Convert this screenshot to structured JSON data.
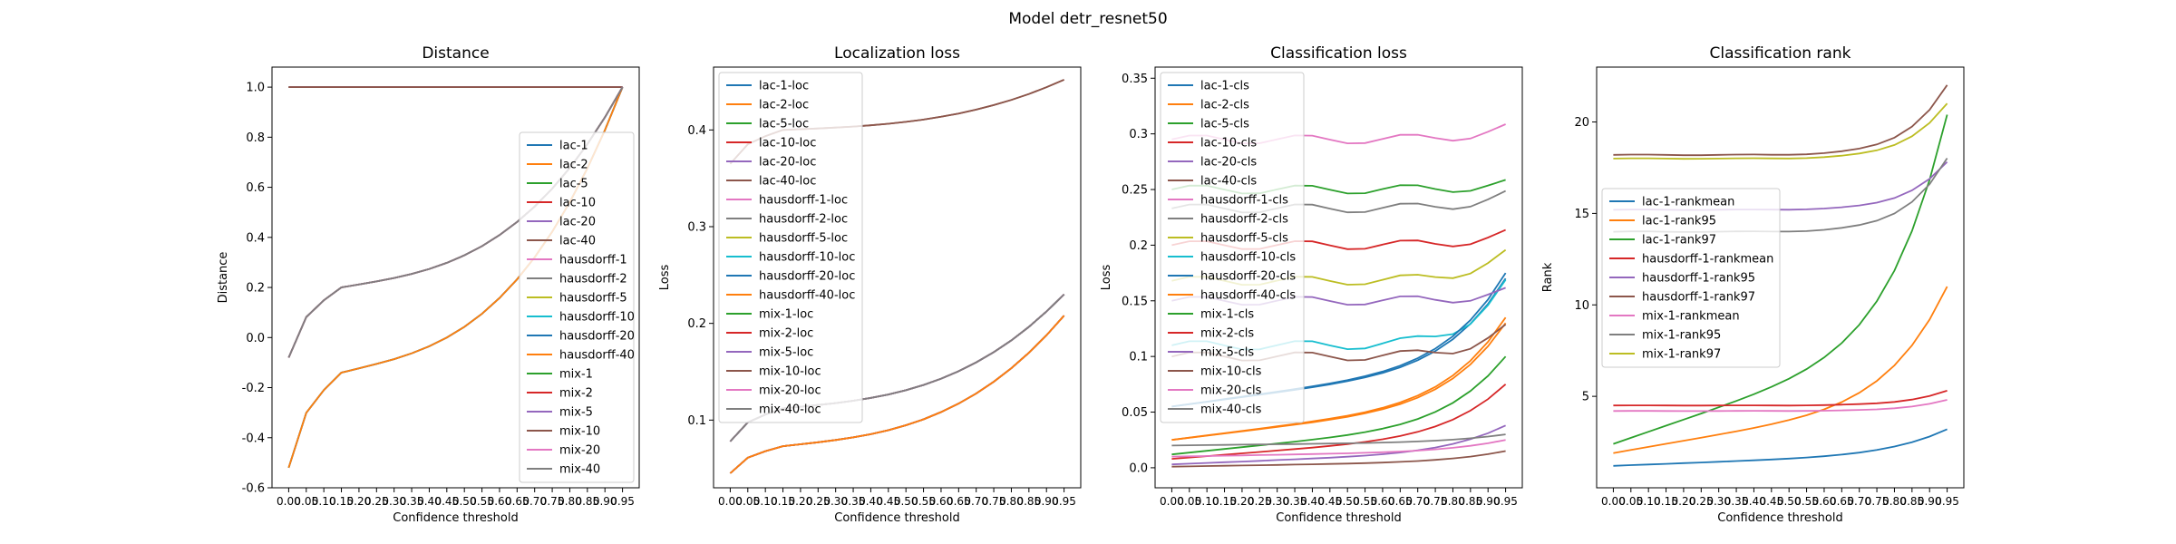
{
  "figure_title": "Model detr_resnet50",
  "chart_data": [
    {
      "type": "line",
      "title": "Distance",
      "xlabel": "Confidence threshold",
      "ylabel": "Distance",
      "ylim": [
        -0.6,
        1.08
      ],
      "yticks": [
        -0.6,
        -0.4,
        -0.2,
        0.0,
        0.2,
        0.4,
        0.6,
        0.8,
        1.0
      ],
      "grid": false,
      "legend_position": "lower-right",
      "series": [
        {
          "name": "lac-1",
          "color": "#1f77b4",
          "curve": "const",
          "y0": 1.0,
          "y1": 1.0
        },
        {
          "name": "lac-2",
          "color": "#ff7f0e",
          "curve": "const",
          "y0": 1.0,
          "y1": 1.0
        },
        {
          "name": "lac-5",
          "color": "#2ca02c",
          "curve": "const",
          "y0": 1.0,
          "y1": 1.0
        },
        {
          "name": "lac-10",
          "color": "#d62728",
          "curve": "const",
          "y0": 1.0,
          "y1": 1.0
        },
        {
          "name": "lac-20",
          "color": "#9467bd",
          "curve": "const",
          "y0": 1.0,
          "y1": 1.0
        },
        {
          "name": "lac-40",
          "color": "#8c564b",
          "curve": "const",
          "y0": 1.0,
          "y1": 1.0
        },
        {
          "name": "hausdorff-1",
          "color": "#e377c2",
          "curve": "log",
          "y0": -0.52,
          "yp": -0.14,
          "y1": 1.0
        },
        {
          "name": "hausdorff-2",
          "color": "#7f7f7f",
          "curve": "log",
          "y0": -0.08,
          "yp": 0.2,
          "y1": 1.0
        },
        {
          "name": "hausdorff-5",
          "color": "#bcbd22",
          "curve": "log",
          "y0": -0.52,
          "yp": -0.14,
          "y1": 1.0
        },
        {
          "name": "hausdorff-10",
          "color": "#17becf",
          "curve": "log",
          "y0": -0.52,
          "yp": -0.14,
          "y1": 1.0
        },
        {
          "name": "hausdorff-20",
          "color": "#1f77b4",
          "curve": "log",
          "y0": -0.52,
          "yp": -0.14,
          "y1": 1.0
        },
        {
          "name": "hausdorff-40",
          "color": "#ff7f0e",
          "curve": "log",
          "y0": -0.52,
          "yp": -0.14,
          "y1": 1.0
        },
        {
          "name": "mix-1",
          "color": "#2ca02c",
          "curve": "log",
          "y0": -0.08,
          "yp": 0.2,
          "y1": 1.0
        },
        {
          "name": "mix-2",
          "color": "#d62728",
          "curve": "log",
          "y0": -0.08,
          "yp": 0.2,
          "y1": 1.0
        },
        {
          "name": "mix-5",
          "color": "#9467bd",
          "curve": "log",
          "y0": -0.08,
          "yp": 0.2,
          "y1": 1.0
        },
        {
          "name": "mix-10",
          "color": "#8c564b",
          "curve": "log",
          "y0": -0.08,
          "yp": 0.2,
          "y1": 1.0
        },
        {
          "name": "mix-20",
          "color": "#e377c2",
          "curve": "log",
          "y0": -0.08,
          "yp": 0.2,
          "y1": 1.0
        },
        {
          "name": "mix-40",
          "color": "#7f7f7f",
          "curve": "log",
          "y0": -0.08,
          "yp": 0.2,
          "y1": 1.0
        }
      ]
    },
    {
      "type": "line",
      "title": "Localization loss",
      "xlabel": "Confidence threshold",
      "ylabel": "Loss",
      "ylim": [
        0.03,
        0.465
      ],
      "yticks": [
        0.1,
        0.2,
        0.3,
        0.4
      ],
      "grid": false,
      "legend_position": "upper-left",
      "series": [
        {
          "name": "lac-1-loc",
          "color": "#1f77b4",
          "curve": "log",
          "y0": 0.045,
          "yp": 0.073,
          "y1": 0.208
        },
        {
          "name": "lac-2-loc",
          "color": "#ff7f0e",
          "curve": "log",
          "y0": 0.045,
          "yp": 0.073,
          "y1": 0.208
        },
        {
          "name": "lac-5-loc",
          "color": "#2ca02c",
          "curve": "log",
          "y0": 0.045,
          "yp": 0.073,
          "y1": 0.208
        },
        {
          "name": "lac-10-loc",
          "color": "#d62728",
          "curve": "log",
          "y0": 0.045,
          "yp": 0.073,
          "y1": 0.208
        },
        {
          "name": "lac-20-loc",
          "color": "#9467bd",
          "curve": "log",
          "y0": 0.045,
          "yp": 0.073,
          "y1": 0.208
        },
        {
          "name": "lac-40-loc",
          "color": "#8c564b",
          "curve": "log",
          "y0": 0.365,
          "yp": 0.4,
          "y1": 0.452
        },
        {
          "name": "hausdorff-1-loc",
          "color": "#e377c2",
          "curve": "log",
          "y0": 0.078,
          "yp": 0.112,
          "y1": 0.23
        },
        {
          "name": "hausdorff-2-loc",
          "color": "#7f7f7f",
          "curve": "log",
          "y0": 0.078,
          "yp": 0.112,
          "y1": 0.23
        },
        {
          "name": "hausdorff-5-loc",
          "color": "#bcbd22",
          "curve": "log",
          "y0": 0.078,
          "yp": 0.112,
          "y1": 0.23
        },
        {
          "name": "hausdorff-10-loc",
          "color": "#17becf",
          "curve": "log",
          "y0": 0.078,
          "yp": 0.112,
          "y1": 0.23
        },
        {
          "name": "hausdorff-20-loc",
          "color": "#1f77b4",
          "curve": "log",
          "y0": 0.078,
          "yp": 0.112,
          "y1": 0.23
        },
        {
          "name": "hausdorff-40-loc",
          "color": "#ff7f0e",
          "curve": "log",
          "y0": 0.045,
          "yp": 0.073,
          "y1": 0.208
        },
        {
          "name": "mix-1-loc",
          "color": "#2ca02c",
          "curve": "log",
          "y0": 0.078,
          "yp": 0.112,
          "y1": 0.23
        },
        {
          "name": "mix-2-loc",
          "color": "#d62728",
          "curve": "log",
          "y0": 0.078,
          "yp": 0.112,
          "y1": 0.23
        },
        {
          "name": "mix-5-loc",
          "color": "#9467bd",
          "curve": "log",
          "y0": 0.078,
          "yp": 0.112,
          "y1": 0.23
        },
        {
          "name": "mix-10-loc",
          "color": "#8c564b",
          "curve": "log",
          "y0": 0.365,
          "yp": 0.4,
          "y1": 0.452
        },
        {
          "name": "mix-20-loc",
          "color": "#e377c2",
          "curve": "log",
          "y0": 0.078,
          "yp": 0.112,
          "y1": 0.23
        },
        {
          "name": "mix-40-loc",
          "color": "#7f7f7f",
          "curve": "log",
          "y0": 0.078,
          "yp": 0.112,
          "y1": 0.23
        }
      ]
    },
    {
      "type": "line",
      "title": "Classification loss",
      "xlabel": "Confidence threshold",
      "ylabel": "Loss",
      "ylim": [
        -0.018,
        0.36
      ],
      "yticks": [
        0.0,
        0.05,
        0.1,
        0.15,
        0.2,
        0.25,
        0.3,
        0.35
      ],
      "grid": false,
      "legend_position": "upper-left",
      "series": [
        {
          "name": "lac-1-cls",
          "color": "#1f77b4",
          "curve": "exp",
          "y0": 0.055,
          "y1": 0.17
        },
        {
          "name": "lac-2-cls",
          "color": "#ff7f0e",
          "curve": "exp",
          "y0": 0.025,
          "y1": 0.135
        },
        {
          "name": "lac-5-cls",
          "color": "#2ca02c",
          "curve": "exp",
          "y0": 0.012,
          "y1": 0.1
        },
        {
          "name": "lac-10-cls",
          "color": "#d62728",
          "curve": "exp",
          "y0": 0.008,
          "y1": 0.075
        },
        {
          "name": "lac-20-cls",
          "color": "#9467bd",
          "curve": "exp",
          "y0": 0.003,
          "y1": 0.038
        },
        {
          "name": "lac-40-cls",
          "color": "#8c564b",
          "curve": "exp",
          "y0": 0.001,
          "y1": 0.015
        },
        {
          "name": "hausdorff-1-cls",
          "color": "#e377c2",
          "curve": "flat",
          "y0": 0.295,
          "y1": 0.305
        },
        {
          "name": "hausdorff-2-cls",
          "color": "#7f7f7f",
          "curve": "flat",
          "y0": 0.233,
          "y1": 0.245
        },
        {
          "name": "hausdorff-5-cls",
          "color": "#bcbd22",
          "curve": "flat",
          "y0": 0.168,
          "y1": 0.192
        },
        {
          "name": "hausdorff-10-cls",
          "color": "#17becf",
          "curve": "flat",
          "y0": 0.11,
          "y1": 0.165
        },
        {
          "name": "hausdorff-20-cls",
          "color": "#1f77b4",
          "curve": "exp",
          "y0": 0.055,
          "y1": 0.175
        },
        {
          "name": "hausdorff-40-cls",
          "color": "#ff7f0e",
          "curve": "exp",
          "y0": 0.025,
          "y1": 0.13
        },
        {
          "name": "mix-1-cls",
          "color": "#2ca02c",
          "curve": "flat",
          "y0": 0.25,
          "y1": 0.255
        },
        {
          "name": "mix-2-cls",
          "color": "#d62728",
          "curve": "flat",
          "y0": 0.2,
          "y1": 0.21
        },
        {
          "name": "mix-5-cls",
          "color": "#9467bd",
          "curve": "flat",
          "y0": 0.15,
          "y1": 0.158
        },
        {
          "name": "mix-10-cls",
          "color": "#8c564b",
          "curve": "flat",
          "y0": 0.1,
          "y1": 0.125
        },
        {
          "name": "mix-20-cls",
          "color": "#e377c2",
          "curve": "exp",
          "y0": 0.01,
          "y1": 0.025
        },
        {
          "name": "mix-40-cls",
          "color": "#7f7f7f",
          "curve": "exp",
          "y0": 0.02,
          "y1": 0.03
        }
      ]
    },
    {
      "type": "line",
      "title": "Classification rank",
      "xlabel": "Confidence threshold",
      "ylabel": "Rank",
      "ylim": [
        0.0,
        23.0
      ],
      "yticks": [
        5,
        10,
        15,
        20
      ],
      "grid": false,
      "legend_position": "center-left",
      "series": [
        {
          "name": "lac-1-rankmean",
          "color": "#1f77b4",
          "curve": "exp",
          "y0": 1.2,
          "y1": 3.2
        },
        {
          "name": "lac-1-rank95",
          "color": "#ff7f0e",
          "curve": "exp",
          "y0": 1.9,
          "y1": 11.0
        },
        {
          "name": "lac-1-rank97",
          "color": "#2ca02c",
          "curve": "exp",
          "y0": 2.4,
          "y1": 20.4
        },
        {
          "name": "hausdorff-1-rankmean",
          "color": "#d62728",
          "curve": "flat",
          "y0": 4.5,
          "y1": 5.3
        },
        {
          "name": "hausdorff-1-rank95",
          "color": "#9467bd",
          "curve": "flat",
          "y0": 15.2,
          "y1": 17.8
        },
        {
          "name": "hausdorff-1-rank97",
          "color": "#8c564b",
          "curve": "flat",
          "y0": 18.2,
          "y1": 22.0
        },
        {
          "name": "mix-1-rankmean",
          "color": "#e377c2",
          "curve": "flat",
          "y0": 4.2,
          "y1": 4.8
        },
        {
          "name": "mix-1-rank95",
          "color": "#7f7f7f",
          "curve": "flat",
          "y0": 14.0,
          "y1": 18.0
        },
        {
          "name": "mix-1-rank97",
          "color": "#bcbd22",
          "curve": "flat",
          "y0": 18.0,
          "y1": 21.0
        }
      ]
    }
  ],
  "x_ticks": [
    "0.00",
    "0.05",
    "0.10",
    "0.15",
    "0.20",
    "0.25",
    "0.30",
    "0.35",
    "0.40",
    "0.45",
    "0.50",
    "0.55",
    "0.60",
    "0.65",
    "0.70",
    "0.75",
    "0.80",
    "0.85",
    "0.90",
    "0.95"
  ]
}
